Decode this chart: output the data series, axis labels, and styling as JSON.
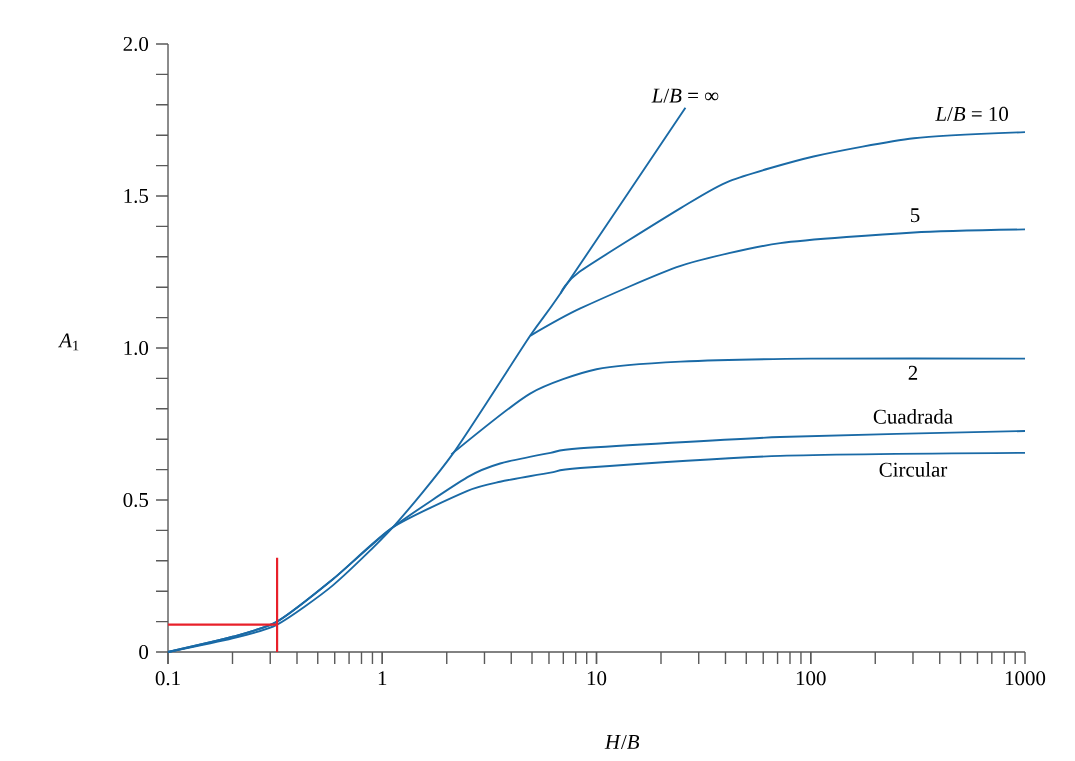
{
  "chart_data": {
    "type": "line",
    "xlabel": "*H*/*B*",
    "ylabel": "*A*$_{1}$",
    "log": "x",
    "xlim": [
      0.1,
      1000
    ],
    "ylim": [
      0,
      2.0
    ],
    "xticks": [
      0.1,
      1,
      10,
      100,
      1000
    ],
    "yticks": [
      {
        "value": 0,
        "label": "0"
      },
      {
        "value": 0.1,
        "label": null
      },
      {
        "value": 0.2,
        "label": null
      },
      {
        "value": 0.3,
        "label": null
      },
      {
        "value": 0.4,
        "label": null
      },
      {
        "value": 0.5,
        "label": "0.5"
      },
      {
        "value": 0.6,
        "label": null
      },
      {
        "value": 0.7,
        "label": null
      },
      {
        "value": 0.8,
        "label": null
      },
      {
        "value": 0.9,
        "label": null
      },
      {
        "value": 1.0,
        "label": "1.0"
      },
      {
        "value": 1.1,
        "label": null
      },
      {
        "value": 1.2,
        "label": null
      },
      {
        "value": 1.3,
        "label": null
      },
      {
        "value": 1.4,
        "label": null
      },
      {
        "value": 1.5,
        "label": "1.5"
      },
      {
        "value": 1.6,
        "label": null
      },
      {
        "value": 1.7,
        "label": null
      },
      {
        "value": 1.8,
        "label": null
      },
      {
        "value": 1.9,
        "label": null
      },
      {
        "value": 2.0,
        "label": "2.0"
      }
    ],
    "grid": false,
    "marker": "none",
    "line_style": "solid",
    "series": [
      {
        "name": "*L*/*B* = ∞",
        "color": "#1a6aa6",
        "x": [
          0.1,
          0.2,
          0.323,
          0.59,
          1.12,
          2.15,
          4.9,
          6.8,
          26
        ],
        "values": [
          0,
          0.045,
          0.09,
          0.22,
          0.41,
          0.655,
          1.04,
          1.18,
          1.79
        ]
      },
      {
        "name": "*L*/*B* = 10",
        "color": "#1a6aa6",
        "x": [
          6.8,
          8.3,
          24.7,
          42,
          103,
          303,
          1000
        ],
        "values": [
          1.18,
          1.25,
          1.46,
          1.55,
          1.63,
          1.69,
          1.71
        ]
      },
      {
        "name": "5",
        "color": "#1a6aa6",
        "x": [
          4.9,
          8.4,
          24.7,
          72,
          303,
          1000
        ],
        "values": [
          1.04,
          1.13,
          1.27,
          1.345,
          1.38,
          1.39
        ]
      },
      {
        "name": "2",
        "color": "#1a6aa6",
        "x": [
          2.1,
          4.9,
          10,
          24.7,
          100,
          1000
        ],
        "values": [
          0.65,
          0.85,
          0.93,
          0.955,
          0.965,
          0.965
        ]
      },
      {
        "name": "Cuadrada",
        "color": "#1a6aa6",
        "x": [
          0.1,
          0.2,
          0.323,
          0.59,
          1.12,
          2.5,
          3.55,
          6.1,
          8.4,
          72,
          1000
        ],
        "values": [
          0,
          0.05,
          0.1,
          0.24,
          0.41,
          0.575,
          0.62,
          0.655,
          0.67,
          0.707,
          0.727
        ]
      },
      {
        "name": "Circular",
        "color": "#1a6aa6",
        "x": [
          0.1,
          0.2,
          0.323,
          0.59,
          1.12,
          2.5,
          3.55,
          6.1,
          8.4,
          72,
          1000
        ],
        "values": [
          0,
          0.05,
          0.1,
          0.24,
          0.41,
          0.53,
          0.56,
          0.59,
          0.605,
          0.645,
          0.655
        ]
      },
      {
        "color": "#e8202a",
        "x": [
          0.1,
          0.323
        ],
        "values": [
          0.09,
          0.09
        ]
      },
      {
        "color": "#e8202a",
        "x": [
          0.323,
          0.323
        ],
        "values": [
          0,
          0.31
        ]
      }
    ]
  }
}
